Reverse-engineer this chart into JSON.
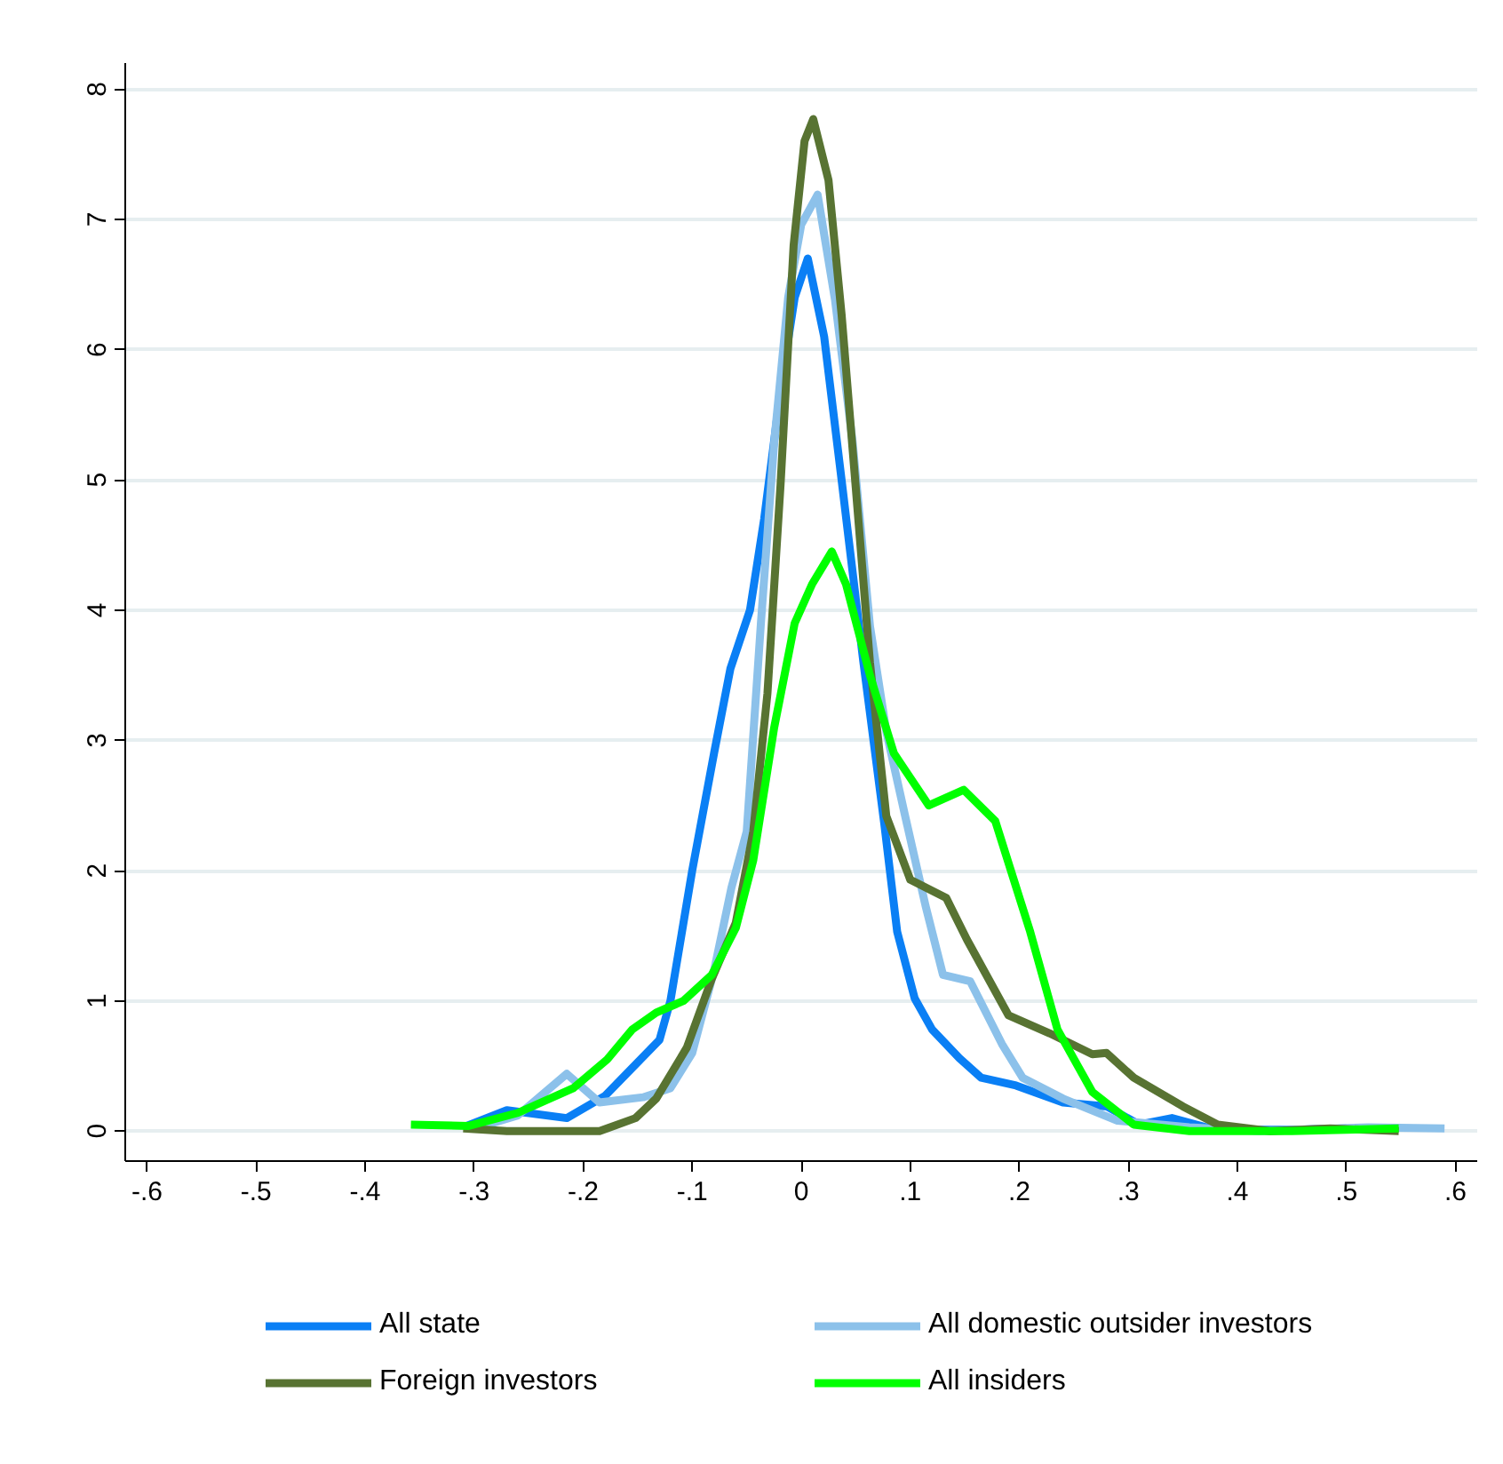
{
  "chart_data": {
    "type": "line",
    "xlim": [
      -0.62,
      0.62
    ],
    "ylim": [
      -0.23,
      8.2
    ],
    "xticks": [
      {
        "value": -0.6,
        "label": "-.6"
      },
      {
        "value": -0.5,
        "label": "-.5"
      },
      {
        "value": -0.4,
        "label": "-.4"
      },
      {
        "value": -0.3,
        "label": "-.3"
      },
      {
        "value": -0.2,
        "label": "-.2"
      },
      {
        "value": -0.1,
        "label": "-.1"
      },
      0,
      {
        "value": 0.1,
        "label": ".1"
      },
      {
        "value": 0.2,
        "label": ".2"
      },
      {
        "value": 0.3,
        "label": ".3"
      },
      {
        "value": 0.4,
        "label": ".4"
      },
      {
        "value": 0.5,
        "label": ".5"
      },
      {
        "value": 0.6,
        "label": ".6"
      }
    ],
    "yticks": [
      0,
      1,
      2,
      3,
      4,
      5,
      6,
      7,
      8
    ],
    "grid": "y",
    "legend": "bottom",
    "marker": "none",
    "line_style": "solid",
    "series": [
      {
        "name": "All state",
        "color": "#0a7ff5",
        "x": [
          -0.31,
          -0.27,
          -0.215,
          -0.18,
          -0.13,
          -0.12,
          -0.1,
          -0.08,
          -0.065,
          -0.047,
          -0.034,
          -0.018,
          -0.006,
          0.006,
          0.021,
          0.037,
          0.057,
          0.076,
          0.088,
          0.104,
          0.12,
          0.145,
          0.165,
          0.197,
          0.24,
          0.28,
          0.31,
          0.34,
          0.38,
          0.45,
          0.5
        ],
        "values": [
          0.03,
          0.16,
          0.1,
          0.27,
          0.7,
          1.0,
          2.0,
          2.9,
          3.55,
          4.0,
          4.7,
          5.75,
          6.4,
          6.7,
          6.1,
          5.0,
          3.6,
          2.37,
          1.53,
          1.02,
          0.78,
          0.56,
          0.41,
          0.35,
          0.22,
          0.19,
          0.05,
          0.1,
          0.01,
          0.01,
          0.02
        ]
      },
      {
        "name": "All domestic outsider investors",
        "color": "#8cc1ea",
        "x": [
          -0.3,
          -0.26,
          -0.215,
          -0.185,
          -0.145,
          -0.12,
          -0.1,
          -0.08,
          -0.064,
          -0.05,
          -0.037,
          -0.025,
          -0.012,
          0.0,
          0.015,
          0.031,
          0.047,
          0.063,
          0.078,
          0.095,
          0.114,
          0.13,
          0.155,
          0.184,
          0.203,
          0.24,
          0.29,
          0.356,
          0.42,
          0.52,
          0.59
        ],
        "values": [
          0.02,
          0.12,
          0.44,
          0.22,
          0.26,
          0.33,
          0.6,
          1.23,
          1.87,
          2.3,
          3.9,
          5.27,
          6.4,
          6.96,
          7.19,
          6.38,
          5.3,
          3.88,
          3.07,
          2.43,
          1.73,
          1.2,
          1.15,
          0.67,
          0.41,
          0.25,
          0.08,
          0.03,
          0.0,
          0.03,
          0.02
        ]
      },
      {
        "name": "Foreign investors",
        "color": "#587332",
        "x": [
          -0.31,
          -0.27,
          -0.185,
          -0.152,
          -0.133,
          -0.105,
          -0.082,
          -0.06,
          -0.044,
          -0.031,
          -0.019,
          -0.007,
          0.003,
          0.011,
          0.025,
          0.037,
          0.05,
          0.063,
          0.078,
          0.1,
          0.133,
          0.152,
          0.19,
          0.228,
          0.267,
          0.28,
          0.305,
          0.35,
          0.382,
          0.43,
          0.485,
          0.548
        ],
        "values": [
          0.02,
          0.0,
          0.0,
          0.1,
          0.25,
          0.64,
          1.17,
          1.6,
          2.3,
          3.36,
          4.96,
          6.8,
          7.6,
          7.77,
          7.3,
          6.27,
          4.94,
          3.6,
          2.42,
          1.93,
          1.79,
          1.47,
          0.89,
          0.75,
          0.59,
          0.6,
          0.41,
          0.19,
          0.05,
          0.0,
          0.02,
          0.0
        ]
      },
      {
        "name": "All insiders",
        "color": "#00ff00",
        "x": [
          -0.358,
          -0.305,
          -0.26,
          -0.209,
          -0.178,
          -0.155,
          -0.133,
          -0.108,
          -0.082,
          -0.06,
          -0.044,
          -0.025,
          -0.006,
          0.01,
          0.028,
          0.041,
          0.063,
          0.085,
          0.117,
          0.149,
          0.178,
          0.21,
          0.235,
          0.267,
          0.305,
          0.356,
          0.45,
          0.548
        ],
        "values": [
          0.05,
          0.04,
          0.14,
          0.33,
          0.55,
          0.78,
          0.91,
          1.0,
          1.2,
          1.56,
          2.08,
          3.09,
          3.9,
          4.2,
          4.45,
          4.2,
          3.5,
          2.9,
          2.5,
          2.62,
          2.38,
          1.53,
          0.78,
          0.3,
          0.05,
          0.0,
          0.0,
          0.02
        ]
      }
    ]
  }
}
